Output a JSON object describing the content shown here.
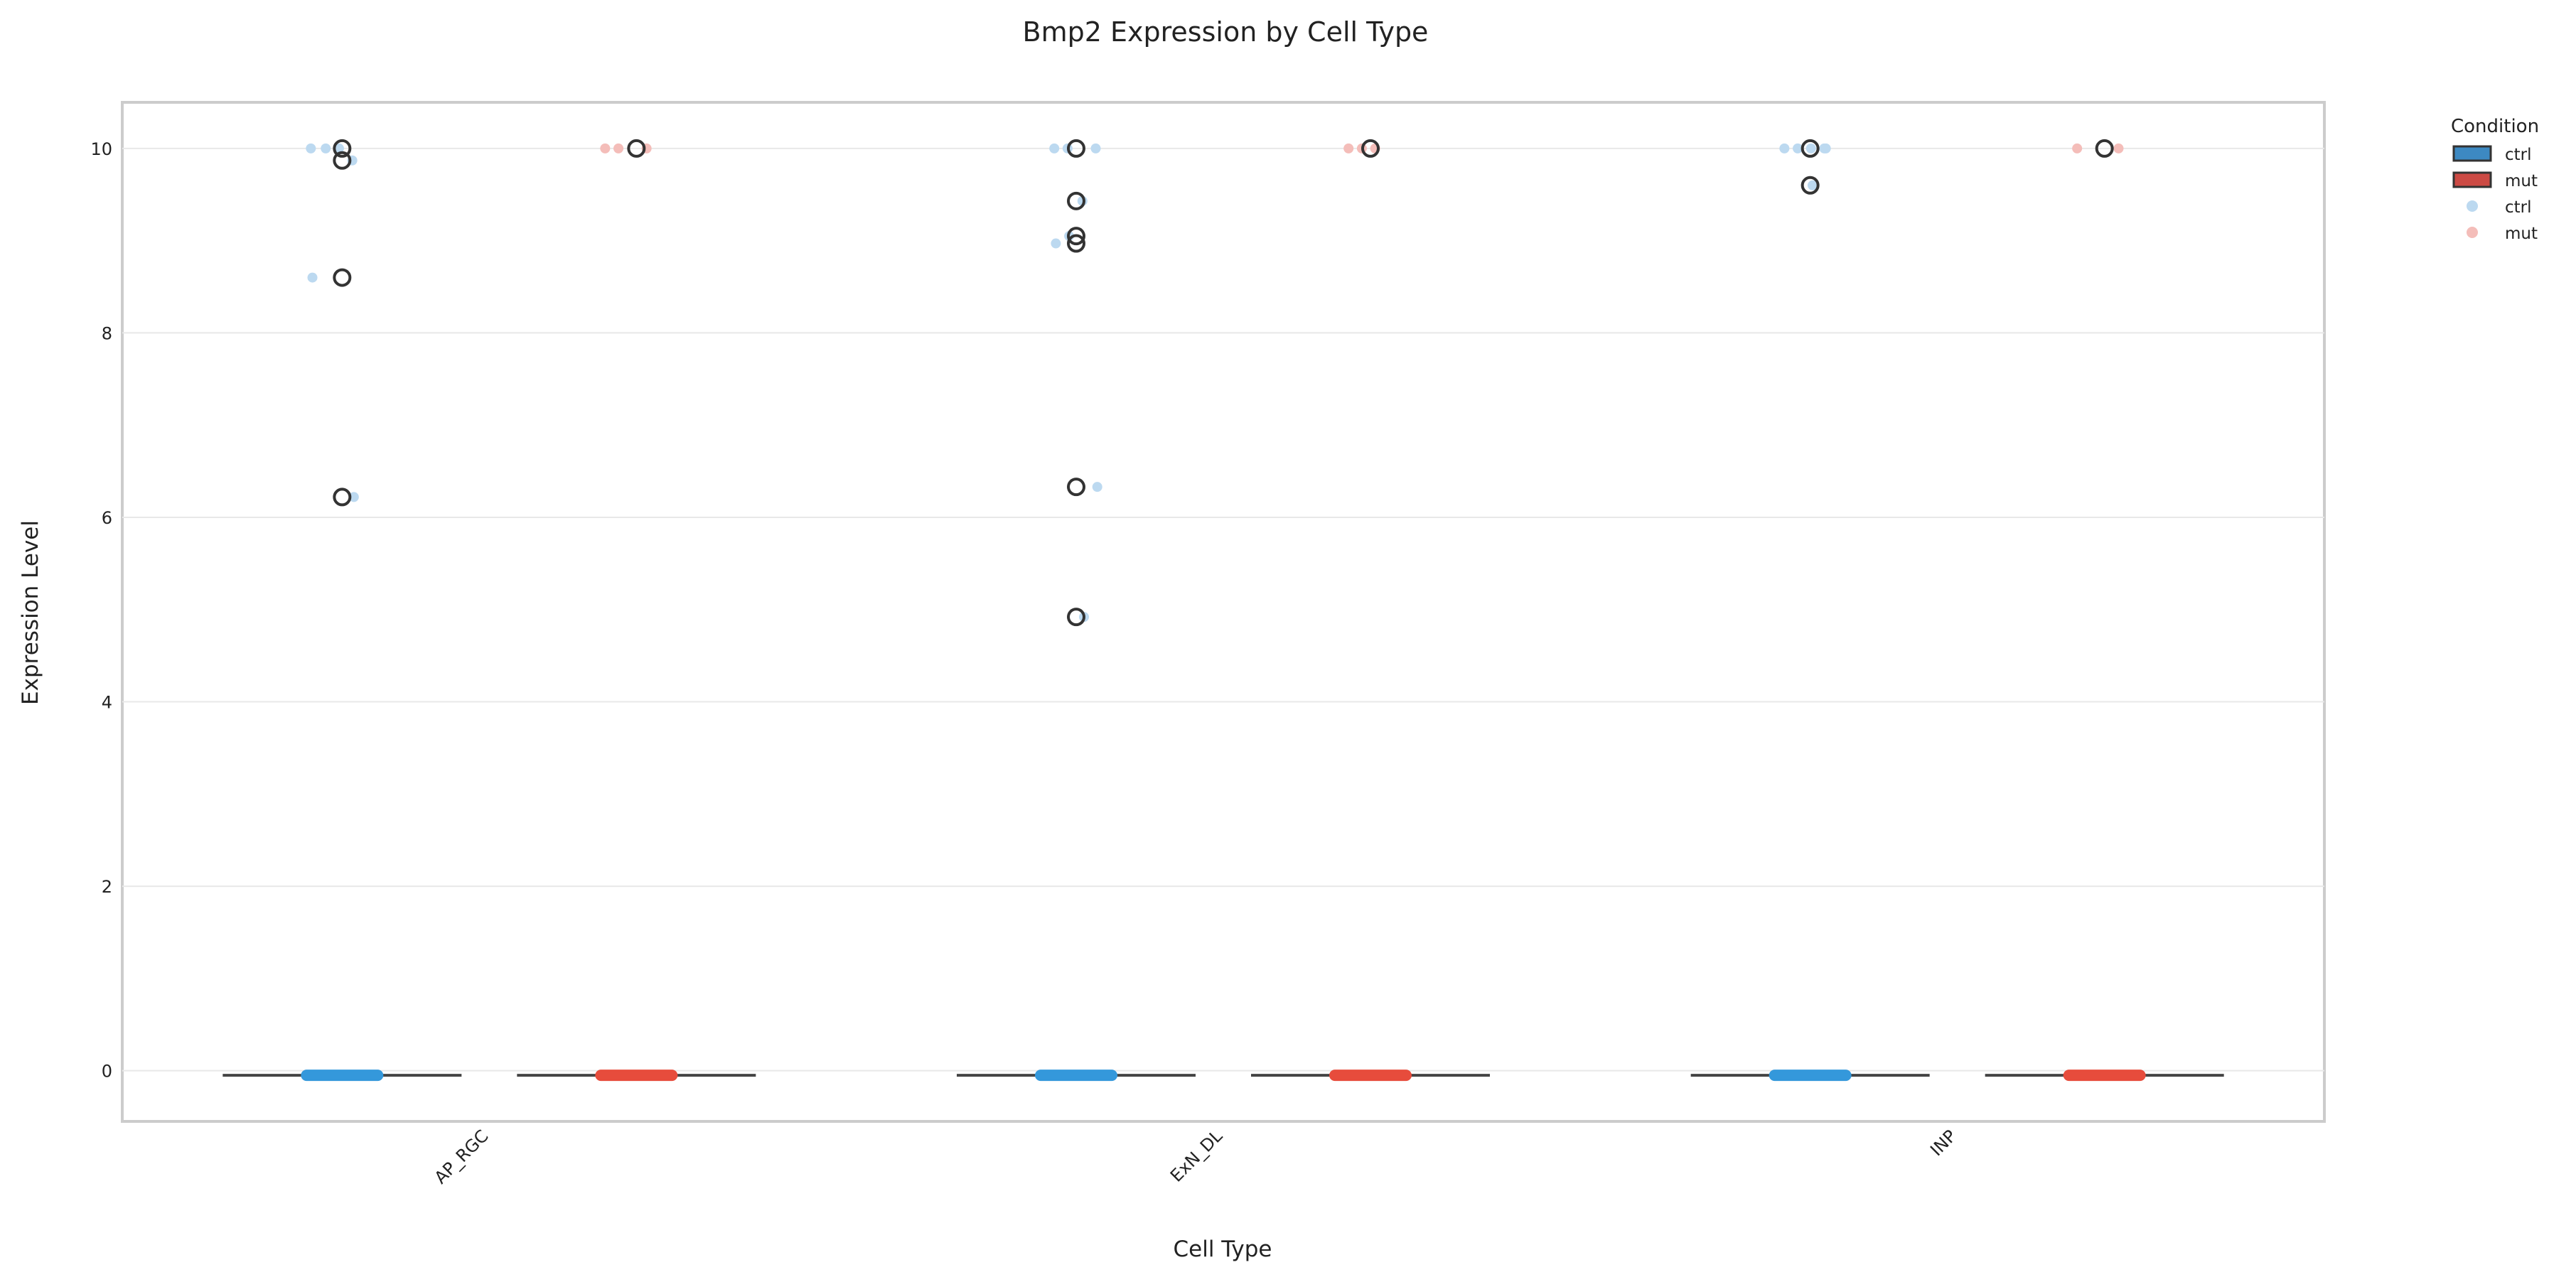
{
  "chart_data": {
    "type": "boxplot",
    "title": "Bmp2 Expression by Cell Type",
    "xlabel": "Cell Type",
    "ylabel": "Expression Level",
    "categories": [
      "AP_RGC",
      "ExN_DL",
      "INP"
    ],
    "ylim": [
      -0.55,
      10.5
    ],
    "yticks": [
      0,
      2,
      4,
      6,
      8,
      10
    ],
    "grid": true,
    "legend": {
      "title": "Condition",
      "placement": "right",
      "box_entries": [
        {
          "label": "ctrl",
          "color": "#3d89c2"
        },
        {
          "label": "mut",
          "color": "#cc4a44"
        }
      ],
      "point_entries": [
        {
          "label": "ctrl",
          "color": "#bcd9f0"
        },
        {
          "label": "mut",
          "color": "#f4bdb9"
        }
      ]
    },
    "series": [
      {
        "name": "ctrl",
        "box_color": "#3498db",
        "point_color": "#bcd9f0",
        "groups": [
          {
            "category": "AP_RGC",
            "median": -0.05,
            "whisker_low": -0.05,
            "whisker_high": -0.05,
            "outliers": [
              10.0,
              9.87,
              8.6,
              6.22
            ],
            "points": [
              10.0,
              9.87,
              10.0,
              10.0,
              8.6,
              6.22
            ]
          },
          {
            "category": "ExN_DL",
            "median": -0.05,
            "whisker_low": -0.05,
            "whisker_high": -0.05,
            "outliers": [
              10.0,
              9.43,
              9.05,
              8.97,
              6.33,
              4.92
            ],
            "points": [
              10.0,
              10.0,
              10.0,
              9.43,
              9.05,
              8.97,
              6.33,
              4.92
            ]
          },
          {
            "category": "INP",
            "median": -0.05,
            "whisker_low": -0.05,
            "whisker_high": -0.05,
            "outliers": [
              10.0,
              9.6
            ],
            "points": [
              10.0,
              10.0,
              10.0,
              10.0,
              10.0,
              9.6
            ]
          }
        ]
      },
      {
        "name": "mut",
        "box_color": "#e74c3c",
        "point_color": "#f4bdb9",
        "groups": [
          {
            "category": "AP_RGC",
            "median": -0.05,
            "whisker_low": -0.05,
            "whisker_high": -0.05,
            "outliers": [
              10.0
            ],
            "points": [
              10.0,
              10.0,
              10.0
            ]
          },
          {
            "category": "ExN_DL",
            "median": -0.05,
            "whisker_low": -0.05,
            "whisker_high": -0.05,
            "outliers": [
              10.0
            ],
            "points": [
              10.0,
              10.0,
              10.0
            ]
          },
          {
            "category": "INP",
            "median": -0.05,
            "whisker_low": -0.05,
            "whisker_high": -0.05,
            "outliers": [
              10.0
            ],
            "points": [
              10.0,
              10.0
            ]
          }
        ]
      }
    ]
  }
}
